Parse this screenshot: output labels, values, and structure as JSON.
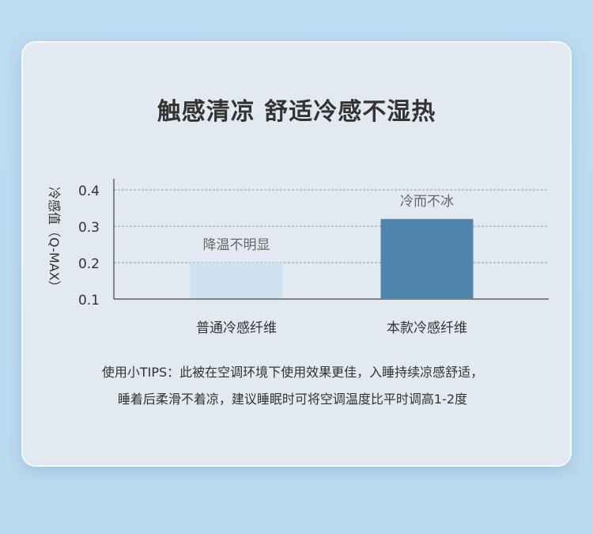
{
  "title": "触感清凉 舒适冷感不湿热",
  "chart_data": {
    "type": "bar",
    "categories": [
      "普通冷感纤维",
      "本款冷感纤维"
    ],
    "values": [
      0.2,
      0.32
    ],
    "data_labels": [
      "降温不明显",
      "冷而不冰"
    ],
    "ylabel": "冷感值（Q-MAX）",
    "xlabel": "",
    "ylim": [
      0.1,
      0.4
    ],
    "yticks": [
      "0.1",
      "0.2",
      "0.3",
      "0.4"
    ],
    "grid": true,
    "colors": [
      "#cde2ee",
      "#4f84ad"
    ]
  },
  "tips": [
    "使用小TIPS：此被在空调环境下使用效果更佳，入睡持续凉感舒适，",
    "睡着后柔滑不着凉，建议睡眠时可将空调温度比平时调高1-2度"
  ]
}
